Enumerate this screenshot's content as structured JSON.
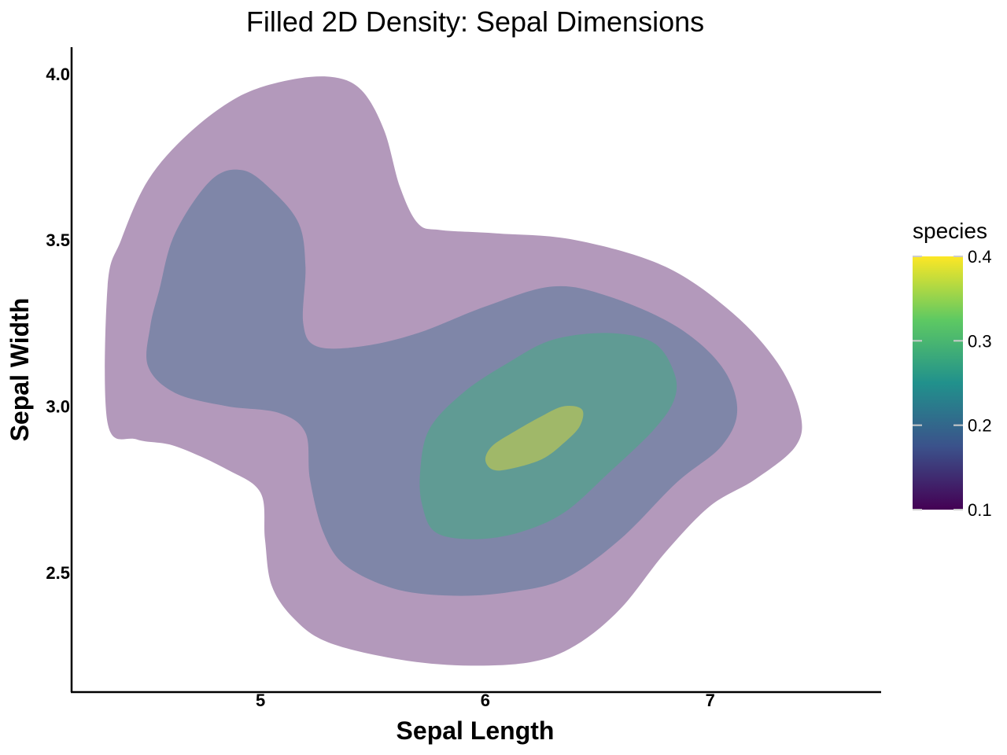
{
  "chart_data": {
    "type": "filled-density-contour",
    "title": "Filled 2D Density: Sepal Dimensions",
    "xlabel": "Sepal Length",
    "ylabel": "Sepal Width",
    "xlim": [
      4.16,
      7.76
    ],
    "ylim": [
      2.14,
      4.08
    ],
    "x_ticks": [
      5,
      6,
      7
    ],
    "y_ticks": [
      2.5,
      3.0,
      3.5,
      4.0
    ],
    "x_tick_labels": [
      "5",
      "6",
      "7"
    ],
    "y_tick_labels": [
      "2.5",
      "3.0",
      "3.5",
      "4.0"
    ],
    "grid": false,
    "legend": {
      "title": "species",
      "position": "right",
      "colorscale": [
        "#440154",
        "#3b528b",
        "#21918c",
        "#5ec962",
        "#fde725"
      ],
      "range": [
        0.1,
        0.4
      ],
      "ticks": [
        0.1,
        0.2,
        0.3,
        0.4
      ],
      "tick_labels": [
        "0.1",
        "0.2",
        "0.3",
        "0.4"
      ]
    },
    "levels": [
      {
        "name": "level-1",
        "color": "#b399bb",
        "points": [
          [
            4.32,
            3.36
          ],
          [
            4.38,
            3.5
          ],
          [
            4.5,
            3.68
          ],
          [
            4.68,
            3.82
          ],
          [
            4.9,
            3.93
          ],
          [
            5.12,
            3.98
          ],
          [
            5.32,
            3.99
          ],
          [
            5.45,
            3.95
          ],
          [
            5.55,
            3.83
          ],
          [
            5.62,
            3.66
          ],
          [
            5.7,
            3.55
          ],
          [
            5.8,
            3.53
          ],
          [
            6.05,
            3.52
          ],
          [
            6.4,
            3.5
          ],
          [
            6.8,
            3.42
          ],
          [
            7.1,
            3.28
          ],
          [
            7.3,
            3.13
          ],
          [
            7.4,
            2.98
          ],
          [
            7.38,
            2.88
          ],
          [
            7.2,
            2.78
          ],
          [
            7.0,
            2.7
          ],
          [
            6.8,
            2.56
          ],
          [
            6.6,
            2.39
          ],
          [
            6.4,
            2.28
          ],
          [
            6.2,
            2.23
          ],
          [
            5.9,
            2.22
          ],
          [
            5.6,
            2.24
          ],
          [
            5.3,
            2.29
          ],
          [
            5.15,
            2.36
          ],
          [
            5.05,
            2.46
          ],
          [
            5.02,
            2.6
          ],
          [
            5.0,
            2.74
          ],
          [
            4.85,
            2.81
          ],
          [
            4.62,
            2.88
          ],
          [
            4.45,
            2.9
          ],
          [
            4.32,
            2.95
          ]
        ]
      },
      {
        "name": "level-2",
        "color": "#7f86a8",
        "points": [
          [
            4.55,
            3.35
          ],
          [
            4.62,
            3.52
          ],
          [
            4.78,
            3.68
          ],
          [
            4.92,
            3.71
          ],
          [
            5.05,
            3.65
          ],
          [
            5.17,
            3.55
          ],
          [
            5.2,
            3.42
          ],
          [
            5.19,
            3.25
          ],
          [
            5.25,
            3.18
          ],
          [
            5.45,
            3.18
          ],
          [
            5.7,
            3.22
          ],
          [
            6.0,
            3.3
          ],
          [
            6.3,
            3.36
          ],
          [
            6.55,
            3.33
          ],
          [
            6.85,
            3.24
          ],
          [
            7.05,
            3.12
          ],
          [
            7.12,
            2.99
          ],
          [
            7.05,
            2.88
          ],
          [
            6.85,
            2.77
          ],
          [
            6.6,
            2.6
          ],
          [
            6.35,
            2.48
          ],
          [
            6.1,
            2.44
          ],
          [
            5.85,
            2.43
          ],
          [
            5.6,
            2.45
          ],
          [
            5.38,
            2.52
          ],
          [
            5.28,
            2.62
          ],
          [
            5.22,
            2.78
          ],
          [
            5.2,
            2.92
          ],
          [
            5.08,
            2.98
          ],
          [
            4.85,
            3.0
          ],
          [
            4.62,
            3.04
          ],
          [
            4.5,
            3.12
          ],
          [
            4.51,
            3.24
          ]
        ]
      },
      {
        "name": "level-3",
        "color": "#609b94",
        "points": [
          [
            5.72,
            2.7
          ],
          [
            5.78,
            2.62
          ],
          [
            5.95,
            2.6
          ],
          [
            6.15,
            2.62
          ],
          [
            6.35,
            2.68
          ],
          [
            6.55,
            2.8
          ],
          [
            6.75,
            2.93
          ],
          [
            6.84,
            3.02
          ],
          [
            6.84,
            3.1
          ],
          [
            6.75,
            3.19
          ],
          [
            6.55,
            3.22
          ],
          [
            6.3,
            3.2
          ],
          [
            6.1,
            3.13
          ],
          [
            5.9,
            3.04
          ],
          [
            5.75,
            2.93
          ],
          [
            5.71,
            2.8
          ]
        ]
      },
      {
        "name": "level-4",
        "color": "#a0b869",
        "points": [
          [
            6.0,
            2.84
          ],
          [
            6.03,
            2.81
          ],
          [
            6.1,
            2.81
          ],
          [
            6.25,
            2.84
          ],
          [
            6.35,
            2.89
          ],
          [
            6.42,
            2.94
          ],
          [
            6.43,
            2.99
          ],
          [
            6.35,
            3.0
          ],
          [
            6.25,
            2.97
          ],
          [
            6.12,
            2.92
          ],
          [
            6.03,
            2.88
          ]
        ]
      }
    ]
  }
}
